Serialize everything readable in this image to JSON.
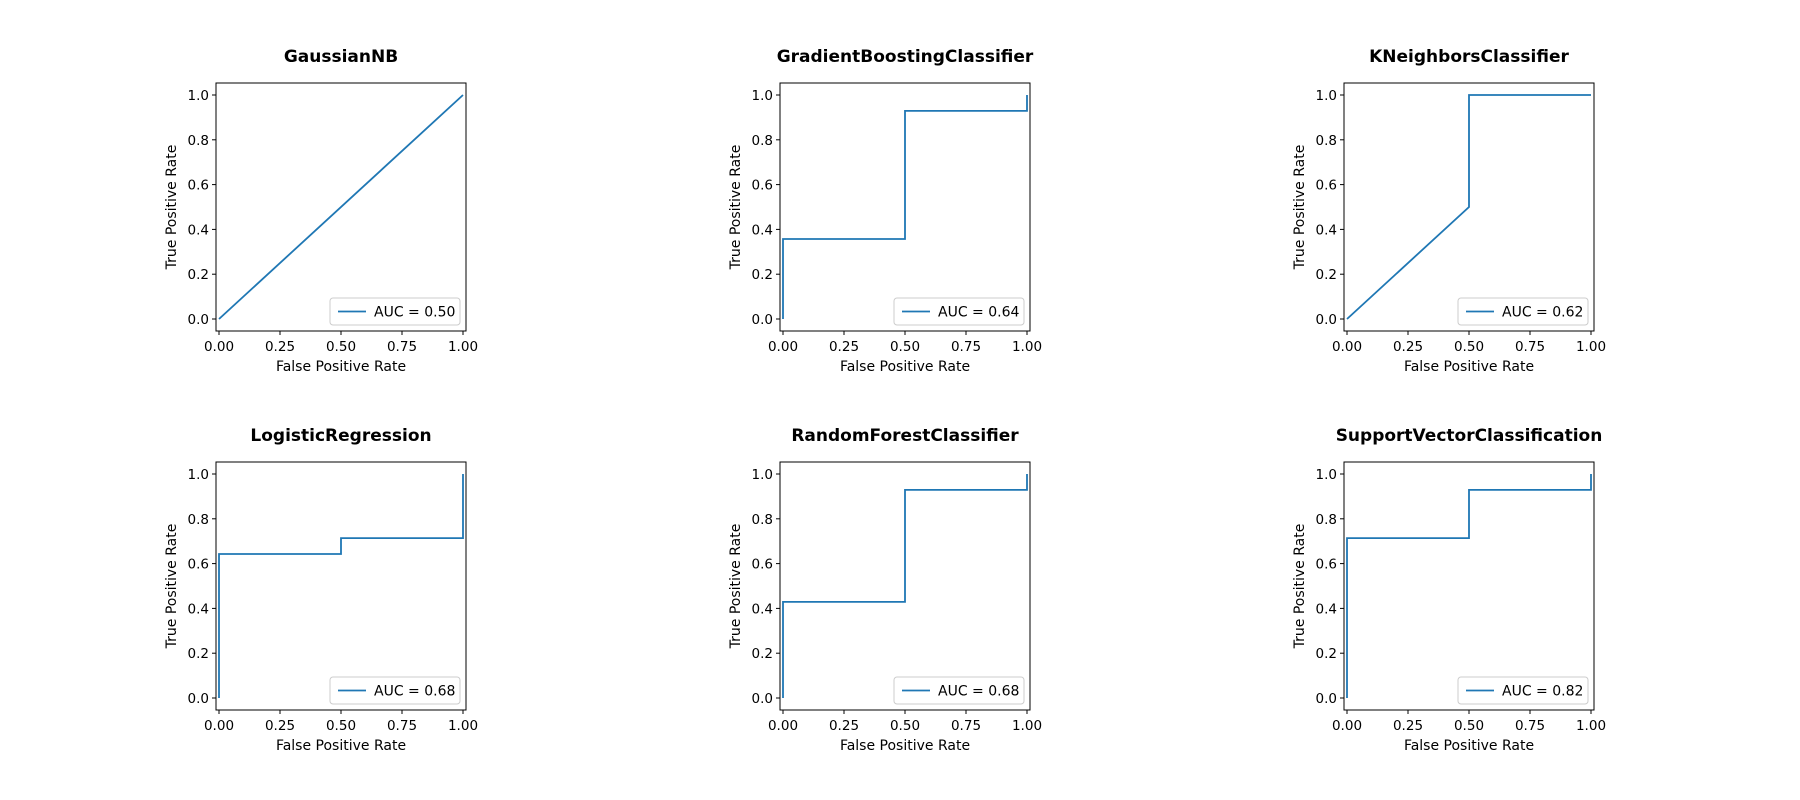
{
  "chart_data": [
    {
      "type": "line",
      "title": "GaussianNB",
      "xlabel": "False Positive Rate",
      "ylabel": "True Positive Rate",
      "xlim": [
        0,
        1
      ],
      "ylim": [
        0,
        1
      ],
      "xticks": [
        "0.00",
        "0.25",
        "0.50",
        "0.75",
        "1.00"
      ],
      "yticks": [
        "0.0",
        "0.2",
        "0.4",
        "0.6",
        "0.8",
        "1.0"
      ],
      "grid": false,
      "legend_position": "lower-right",
      "series": [
        {
          "name": "AUC = 0.50",
          "color": "#1f77b4",
          "x": [
            0.0,
            1.0
          ],
          "y": [
            0.0,
            1.0
          ]
        }
      ]
    },
    {
      "type": "line",
      "title": "GradientBoostingClassifier",
      "xlabel": "False Positive Rate",
      "ylabel": "True Positive Rate",
      "xlim": [
        0,
        1
      ],
      "ylim": [
        0,
        1
      ],
      "xticks": [
        "0.00",
        "0.25",
        "0.50",
        "0.75",
        "1.00"
      ],
      "yticks": [
        "0.0",
        "0.2",
        "0.4",
        "0.6",
        "0.8",
        "1.0"
      ],
      "grid": false,
      "legend_position": "lower-right",
      "series": [
        {
          "name": "AUC = 0.64",
          "color": "#1f77b4",
          "x": [
            0.0,
            0.0,
            0.0,
            0.5,
            0.5,
            1.0,
            1.0
          ],
          "y": [
            0.0,
            0.0,
            0.357,
            0.357,
            0.929,
            0.929,
            1.0
          ]
        }
      ]
    },
    {
      "type": "line",
      "title": "KNeighborsClassifier",
      "xlabel": "False Positive Rate",
      "ylabel": "True Positive Rate",
      "xlim": [
        0,
        1
      ],
      "ylim": [
        0,
        1
      ],
      "xticks": [
        "0.00",
        "0.25",
        "0.50",
        "0.75",
        "1.00"
      ],
      "yticks": [
        "0.0",
        "0.2",
        "0.4",
        "0.6",
        "0.8",
        "1.0"
      ],
      "grid": false,
      "legend_position": "lower-right",
      "series": [
        {
          "name": "AUC = 0.62",
          "color": "#1f77b4",
          "x": [
            0.0,
            0.5,
            0.5,
            1.0
          ],
          "y": [
            0.0,
            0.5,
            1.0,
            1.0
          ]
        }
      ]
    },
    {
      "type": "line",
      "title": "LogisticRegression",
      "xlabel": "False Positive Rate",
      "ylabel": "True Positive Rate",
      "xlim": [
        0,
        1
      ],
      "ylim": [
        0,
        1
      ],
      "xticks": [
        "0.00",
        "0.25",
        "0.50",
        "0.75",
        "1.00"
      ],
      "yticks": [
        "0.0",
        "0.2",
        "0.4",
        "0.6",
        "0.8",
        "1.0"
      ],
      "grid": false,
      "legend_position": "lower-right",
      "series": [
        {
          "name": "AUC = 0.68",
          "color": "#1f77b4",
          "x": [
            0.0,
            0.0,
            0.0,
            0.5,
            0.5,
            1.0,
            1.0
          ],
          "y": [
            0.0,
            0.0,
            0.643,
            0.643,
            0.714,
            0.714,
            1.0
          ]
        }
      ]
    },
    {
      "type": "line",
      "title": "RandomForestClassifier",
      "xlabel": "False Positive Rate",
      "ylabel": "True Positive Rate",
      "xlim": [
        0,
        1
      ],
      "ylim": [
        0,
        1
      ],
      "xticks": [
        "0.00",
        "0.25",
        "0.50",
        "0.75",
        "1.00"
      ],
      "yticks": [
        "0.0",
        "0.2",
        "0.4",
        "0.6",
        "0.8",
        "1.0"
      ],
      "grid": false,
      "legend_position": "lower-right",
      "series": [
        {
          "name": "AUC = 0.68",
          "color": "#1f77b4",
          "x": [
            0.0,
            0.0,
            0.0,
            0.5,
            0.5,
            1.0,
            1.0
          ],
          "y": [
            0.0,
            0.0,
            0.429,
            0.429,
            0.929,
            0.929,
            1.0
          ]
        }
      ]
    },
    {
      "type": "line",
      "title": "SupportVectorClassification",
      "xlabel": "False Positive Rate",
      "ylabel": "True Positive Rate",
      "xlim": [
        0,
        1
      ],
      "ylim": [
        0,
        1
      ],
      "xticks": [
        "0.00",
        "0.25",
        "0.50",
        "0.75",
        "1.00"
      ],
      "yticks": [
        "0.0",
        "0.2",
        "0.4",
        "0.6",
        "0.8",
        "1.0"
      ],
      "grid": false,
      "legend_position": "lower-right",
      "series": [
        {
          "name": "AUC = 0.82",
          "color": "#1f77b4",
          "x": [
            0.0,
            0.0,
            0.0,
            0.5,
            0.5,
            1.0,
            1.0
          ],
          "y": [
            0.0,
            0.0,
            0.714,
            0.714,
            0.929,
            0.929,
            1.0
          ]
        }
      ]
    }
  ]
}
